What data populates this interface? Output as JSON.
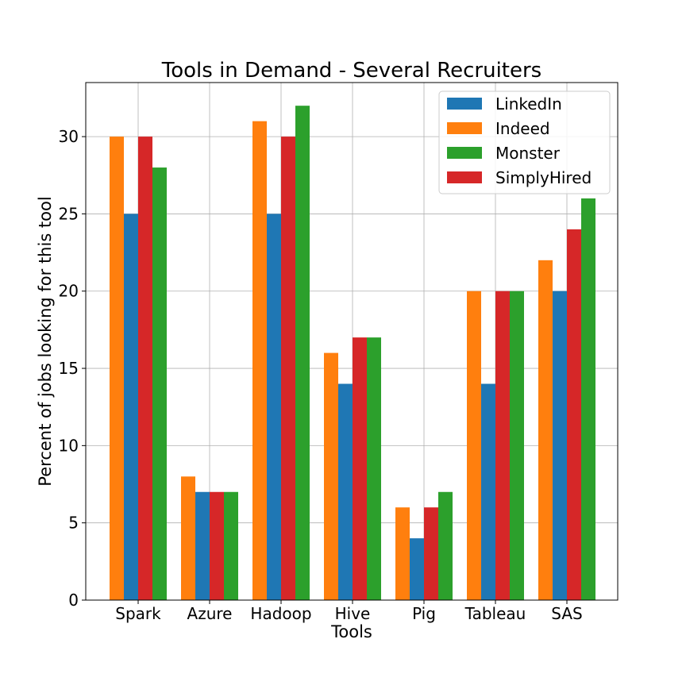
{
  "chart_data": {
    "type": "bar",
    "title": "Tools in Demand - Several Recruiters",
    "xlabel": "Tools",
    "ylabel": "Percent of jobs looking for this tool",
    "categories": [
      "Spark",
      "Azure",
      "Hadoop",
      "Hive",
      "Pig",
      "Tableau",
      "SAS"
    ],
    "ylim": [
      0,
      33.5
    ],
    "yticks": [
      0,
      5,
      10,
      15,
      20,
      25,
      30
    ],
    "ytick_labels": [
      "0",
      "5",
      "10",
      "15",
      "20",
      "25",
      "30"
    ],
    "grid": true,
    "legend_position": "top-right",
    "series": [
      {
        "name": "Indeed",
        "color": "#ff7f0e",
        "values": [
          30,
          8,
          31,
          16,
          6,
          20,
          22
        ]
      },
      {
        "name": "LinkedIn",
        "color": "#1f77b4",
        "values": [
          25,
          7,
          25,
          14,
          4,
          14,
          20
        ]
      },
      {
        "name": "SimplyHired",
        "color": "#d62728",
        "values": [
          30,
          7,
          30,
          17,
          6,
          20,
          24
        ]
      },
      {
        "name": "Monster",
        "color": "#2ca02c",
        "values": [
          28,
          7,
          32,
          17,
          7,
          20,
          26
        ]
      }
    ],
    "legend_order": [
      "LinkedIn",
      "Indeed",
      "Monster",
      "SimplyHired"
    ]
  }
}
